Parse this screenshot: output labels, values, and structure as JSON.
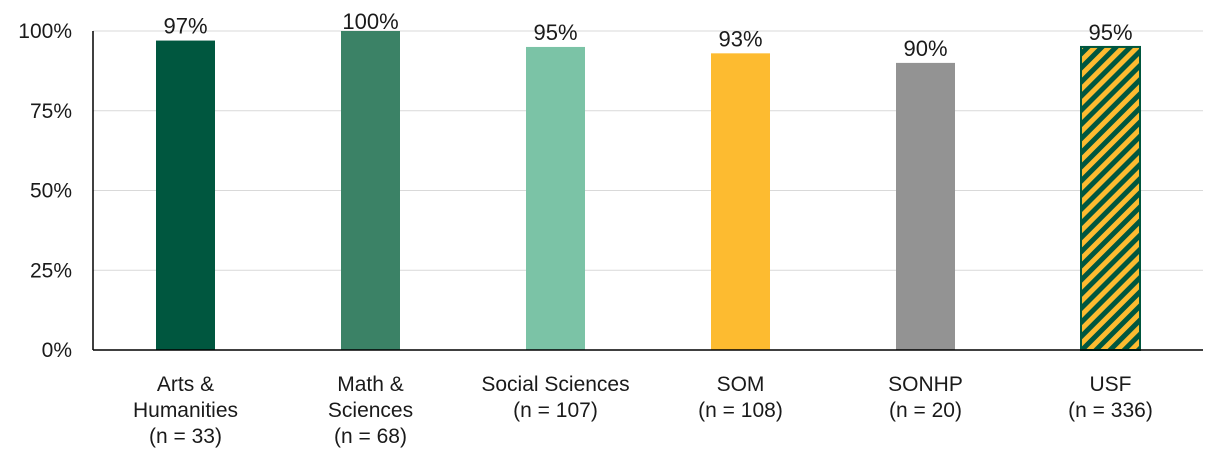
{
  "chart_data": {
    "type": "bar",
    "categories": [
      [
        "Arts &",
        "Humanities",
        "(n = 33)"
      ],
      [
        "Math &",
        "Sciences",
        "(n = 68)"
      ],
      [
        "Social Sciences",
        "(n = 107)"
      ],
      [
        "SOM",
        "(n = 108)"
      ],
      [
        "SONHP",
        "(n = 20)"
      ],
      [
        "USF",
        "(n = 336)"
      ]
    ],
    "values": [
      97,
      100,
      95,
      93,
      90,
      95
    ],
    "data_labels": [
      "97%",
      "100%",
      "95%",
      "93%",
      "90%",
      "95%"
    ],
    "colors": [
      "#00573f",
      "#3b8266",
      "#7bc3a6",
      "#fdbb30",
      "#939393",
      "hatch"
    ],
    "hatch_colors": {
      "fill": "#fdbb30",
      "stripe": "#00573f"
    },
    "ylim": [
      0,
      100
    ],
    "yticks": [
      0,
      25,
      50,
      75,
      100
    ],
    "ytick_labels": [
      "0%",
      "25%",
      "50%",
      "75%",
      "100%"
    ],
    "grid": true,
    "title": "",
    "xlabel": "",
    "ylabel": ""
  }
}
